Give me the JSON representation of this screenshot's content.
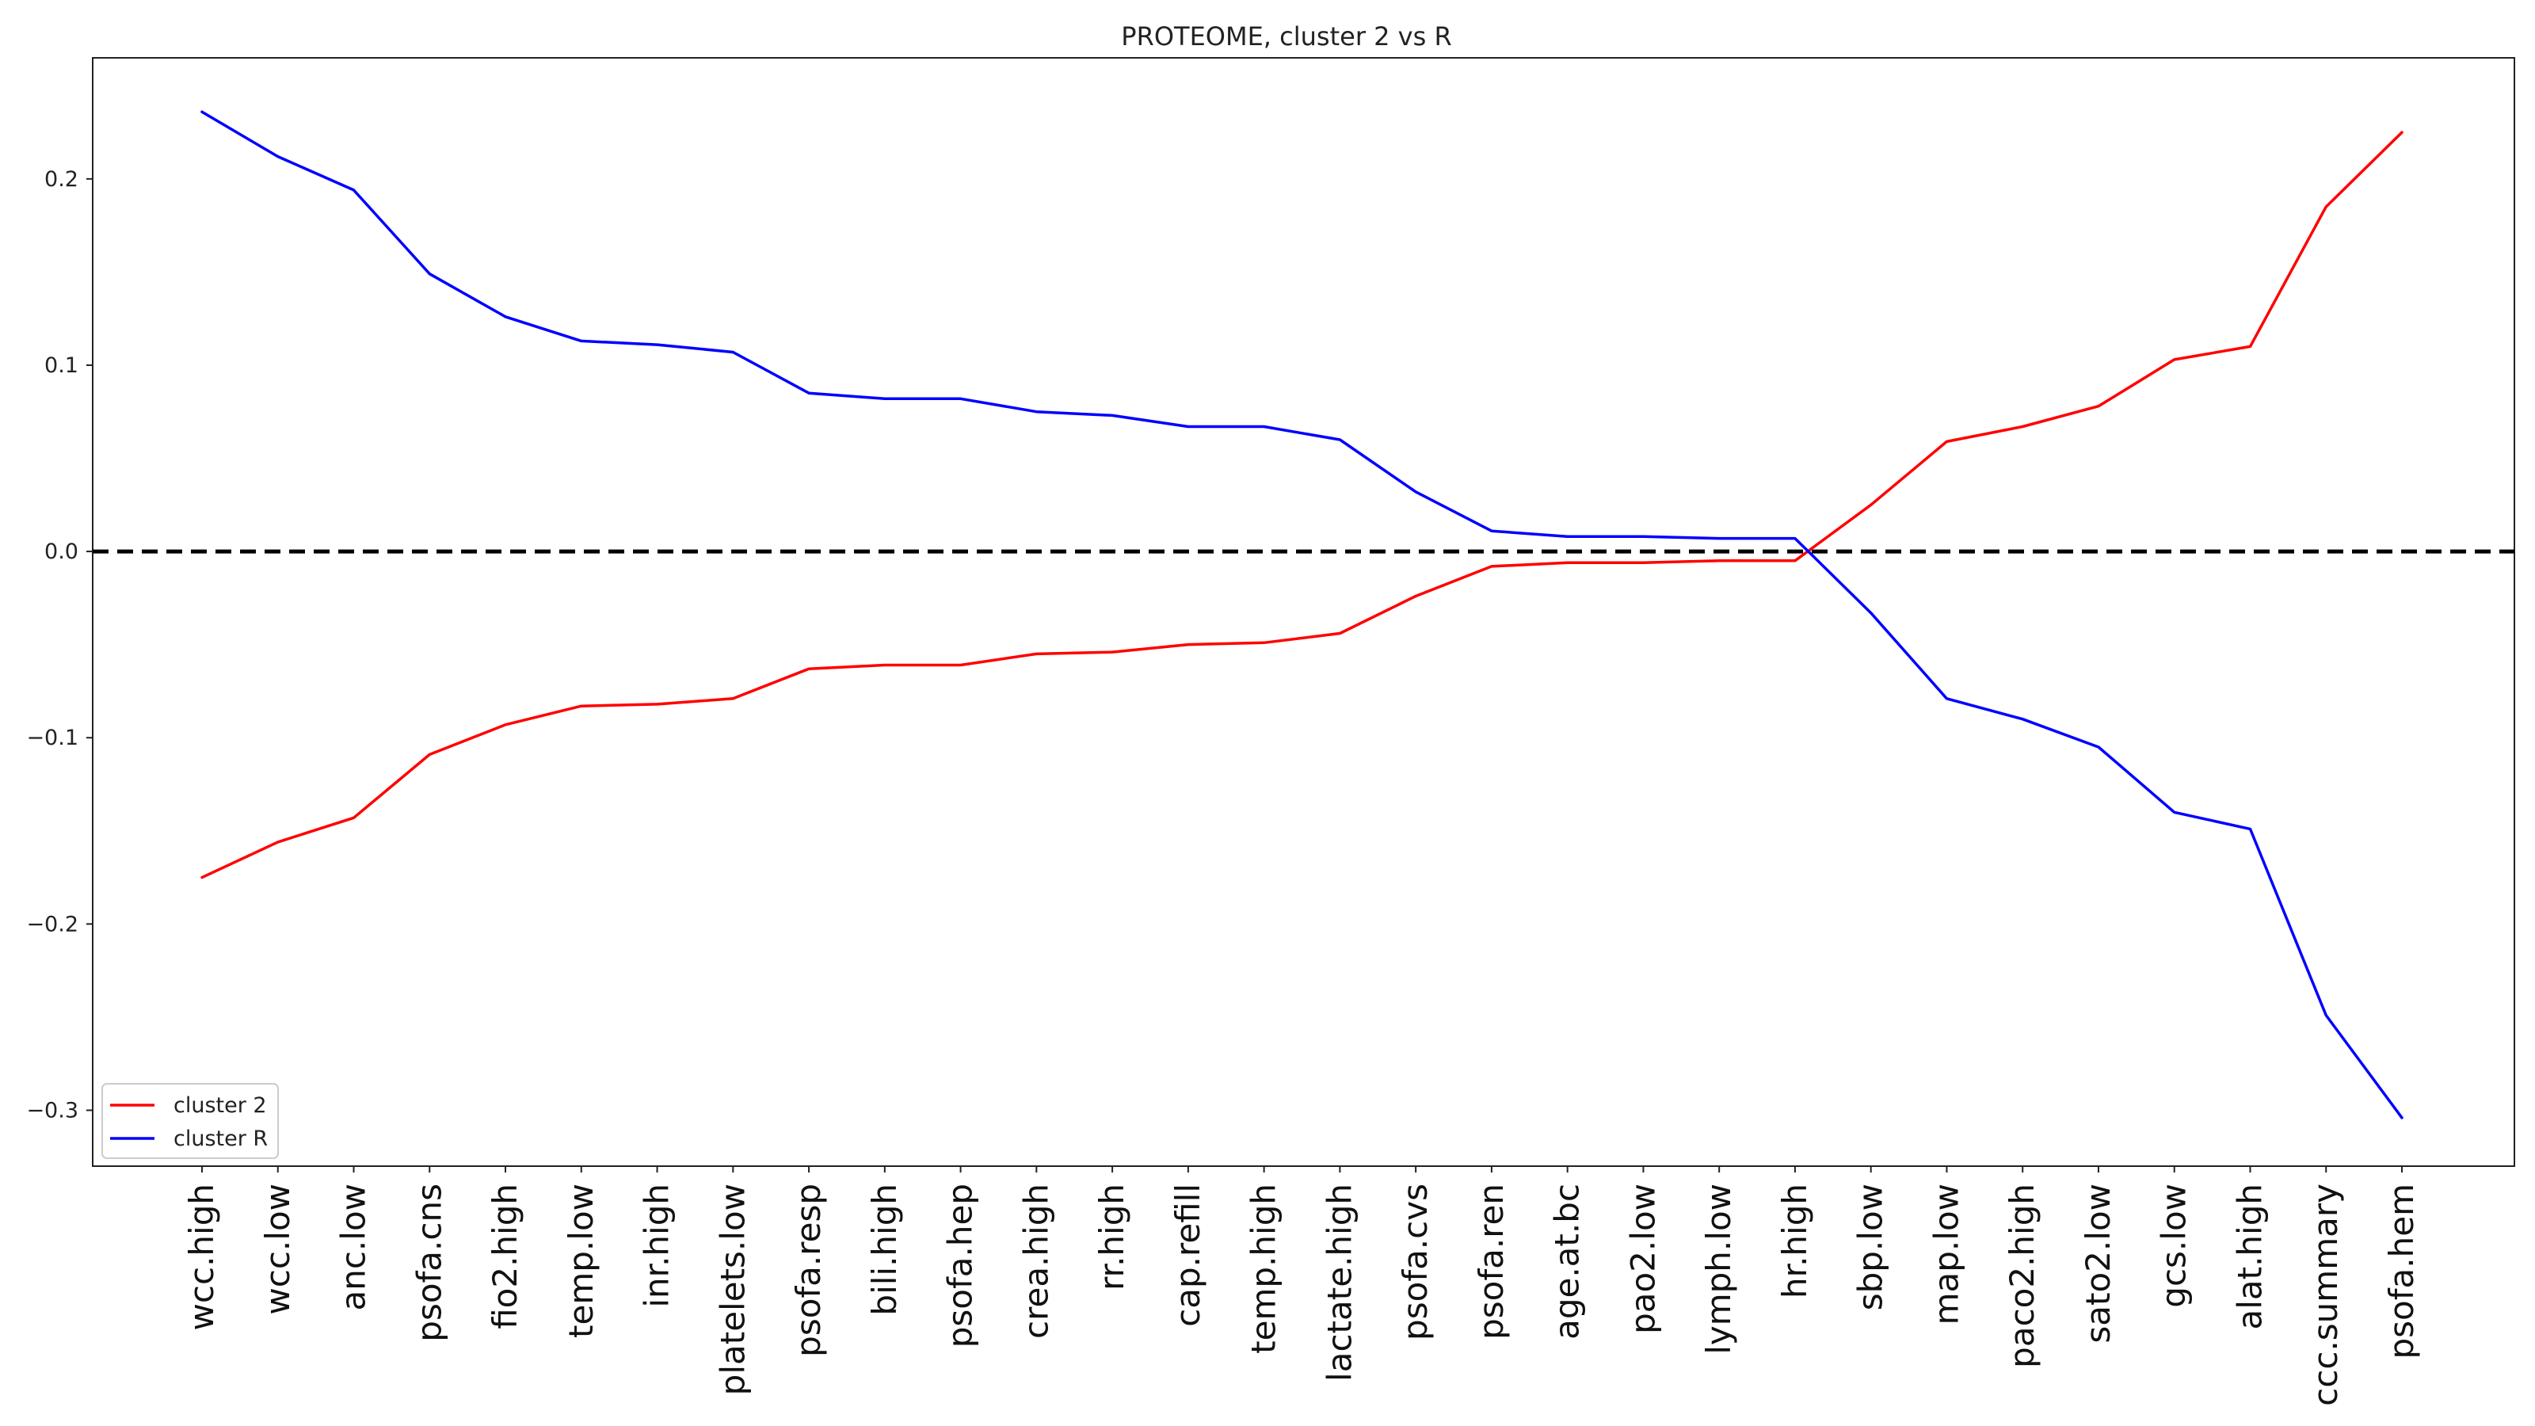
{
  "chart_data": {
    "type": "line",
    "title": "PROTEOME, cluster 2 vs R",
    "xlabel": "",
    "ylabel": "",
    "ylim": [
      -0.33,
      0.265
    ],
    "yticks": [
      -0.3,
      -0.2,
      -0.1,
      0.0,
      0.1,
      0.2
    ],
    "ytick_labels": [
      "−0.3",
      "−0.2",
      "−0.1",
      "0.0",
      "0.1",
      "0.2"
    ],
    "grid": false,
    "reference_line": {
      "y": 0.0,
      "style": "dashed",
      "color": "#000000"
    },
    "categories": [
      "wcc.high",
      "wcc.low",
      "anc.low",
      "psofa.cns",
      "fio2.high",
      "temp.low",
      "inr.high",
      "platelets.low",
      "psofa.resp",
      "bili.high",
      "psofa.hep",
      "crea.high",
      "rr.high",
      "cap.refill",
      "temp.high",
      "lactate.high",
      "psofa.cvs",
      "psofa.ren",
      "age.at.bc",
      "pao2.low",
      "lymph.low",
      "hr.high",
      "sbp.low",
      "map.low",
      "paco2.high",
      "sato2.low",
      "gcs.low",
      "alat.high",
      "ccc.summary",
      "psofa.hem"
    ],
    "series": [
      {
        "name": "cluster 2",
        "color": "#ff0000",
        "values": [
          -0.175,
          -0.156,
          -0.143,
          -0.109,
          -0.093,
          -0.083,
          -0.082,
          -0.079,
          -0.063,
          -0.061,
          -0.061,
          -0.055,
          -0.054,
          -0.05,
          -0.049,
          -0.044,
          -0.024,
          -0.008,
          -0.006,
          -0.006,
          -0.005,
          -0.005,
          0.025,
          0.059,
          0.067,
          0.078,
          0.103,
          0.11,
          0.185,
          0.225
        ]
      },
      {
        "name": "cluster R",
        "color": "#0000ff",
        "values": [
          0.236,
          0.212,
          0.194,
          0.149,
          0.126,
          0.113,
          0.111,
          0.107,
          0.085,
          0.082,
          0.082,
          0.075,
          0.073,
          0.067,
          0.067,
          0.06,
          0.032,
          0.011,
          0.008,
          0.008,
          0.007,
          0.007,
          -0.033,
          -0.079,
          -0.09,
          -0.105,
          -0.14,
          -0.149,
          -0.249,
          -0.304
        ]
      }
    ],
    "legend": {
      "location": "bottom-left"
    }
  }
}
